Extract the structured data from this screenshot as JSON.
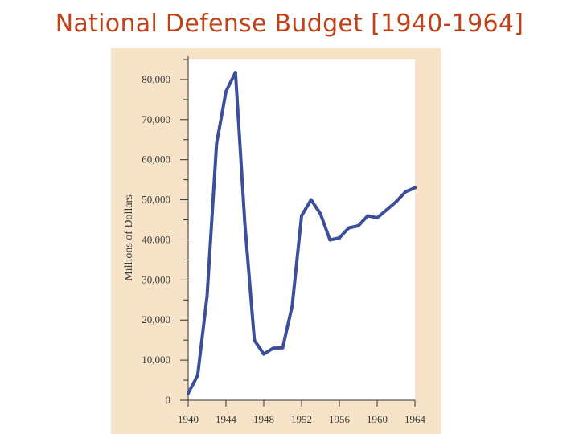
{
  "slide": {
    "title": "National Defense Budget [1940-1964]"
  },
  "colors": {
    "title": "#c0421a",
    "panel_background": "#f6e3c8",
    "plot_background": "#ffffff",
    "series_line": "#3c4f9b",
    "axis": "#333333"
  },
  "chart_data": {
    "type": "line",
    "title": "",
    "xlabel": "",
    "ylabel": "Millions of Dollars",
    "xlim": [
      1940,
      1964
    ],
    "ylim": [
      0,
      85000
    ],
    "x_ticks": [
      1940,
      1944,
      1948,
      1952,
      1956,
      1960,
      1964
    ],
    "x_tick_labels": [
      "1940",
      "1944",
      "1948",
      "1952",
      "1956",
      "1960",
      "1964"
    ],
    "y_ticks": [
      0,
      10000,
      20000,
      30000,
      40000,
      50000,
      60000,
      70000,
      80000
    ],
    "y_tick_labels": [
      "0",
      "10,000",
      "20,000",
      "30,000",
      "40,000",
      "50,000",
      "60,000",
      "70,000",
      "80,000"
    ],
    "grid": false,
    "series": [
      {
        "x": [
          1940,
          1941,
          1942,
          1943,
          1944,
          1945,
          1946,
          1947,
          1948,
          1949,
          1950,
          1951,
          1952,
          1953,
          1954,
          1955,
          1956,
          1957,
          1958,
          1959,
          1960,
          1961,
          1962,
          1963,
          1964
        ],
        "y": [
          1700,
          6200,
          26000,
          64000,
          77000,
          81800,
          44000,
          15000,
          11500,
          13000,
          13100,
          23500,
          46000,
          50000,
          46500,
          40000,
          40500,
          43000,
          43500,
          46000,
          45500,
          47500,
          49500,
          52000,
          53000
        ]
      }
    ]
  }
}
